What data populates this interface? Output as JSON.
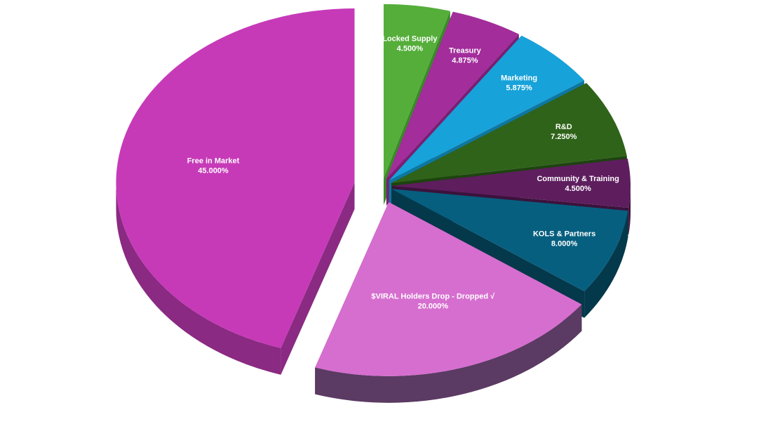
{
  "chart_data": {
    "type": "pie",
    "style": "3d-exploded",
    "title": "",
    "slices": [
      {
        "label": "Locked Supply",
        "value": 4.5,
        "value_label": "4.500%",
        "color": "#55AE3A",
        "side_color": "#3A8A27"
      },
      {
        "label": "Treasury",
        "value": 4.875,
        "value_label": "4.875%",
        "color": "#A22D9B",
        "side_color": "#7A1F74"
      },
      {
        "label": "Marketing",
        "value": 5.875,
        "value_label": "5.875%",
        "color": "#17A2D9",
        "side_color": "#0E77A1"
      },
      {
        "label": "R&D",
        "value": 7.25,
        "value_label": "7.250%",
        "color": "#2F6319",
        "side_color": "#1E4310"
      },
      {
        "label": "Community & Training",
        "value": 4.5,
        "value_label": "4.500%",
        "color": "#5E1E5E",
        "side_color": "#3C123C"
      },
      {
        "label": "KOLS & Partners",
        "value": 8.0,
        "value_label": "8.000%",
        "color": "#075F7F",
        "side_color": "#04384B"
      },
      {
        "label": "$VIRAL Holders Drop - Dropped √",
        "value": 20.0,
        "value_label": "20.000%",
        "color": "#D66ECF",
        "side_color": "#5B3A63"
      },
      {
        "label": "Free in Market",
        "value": 45.0,
        "value_label": "45.000%",
        "color": "#C63AB8",
        "side_color": "#8A2A82"
      }
    ]
  }
}
